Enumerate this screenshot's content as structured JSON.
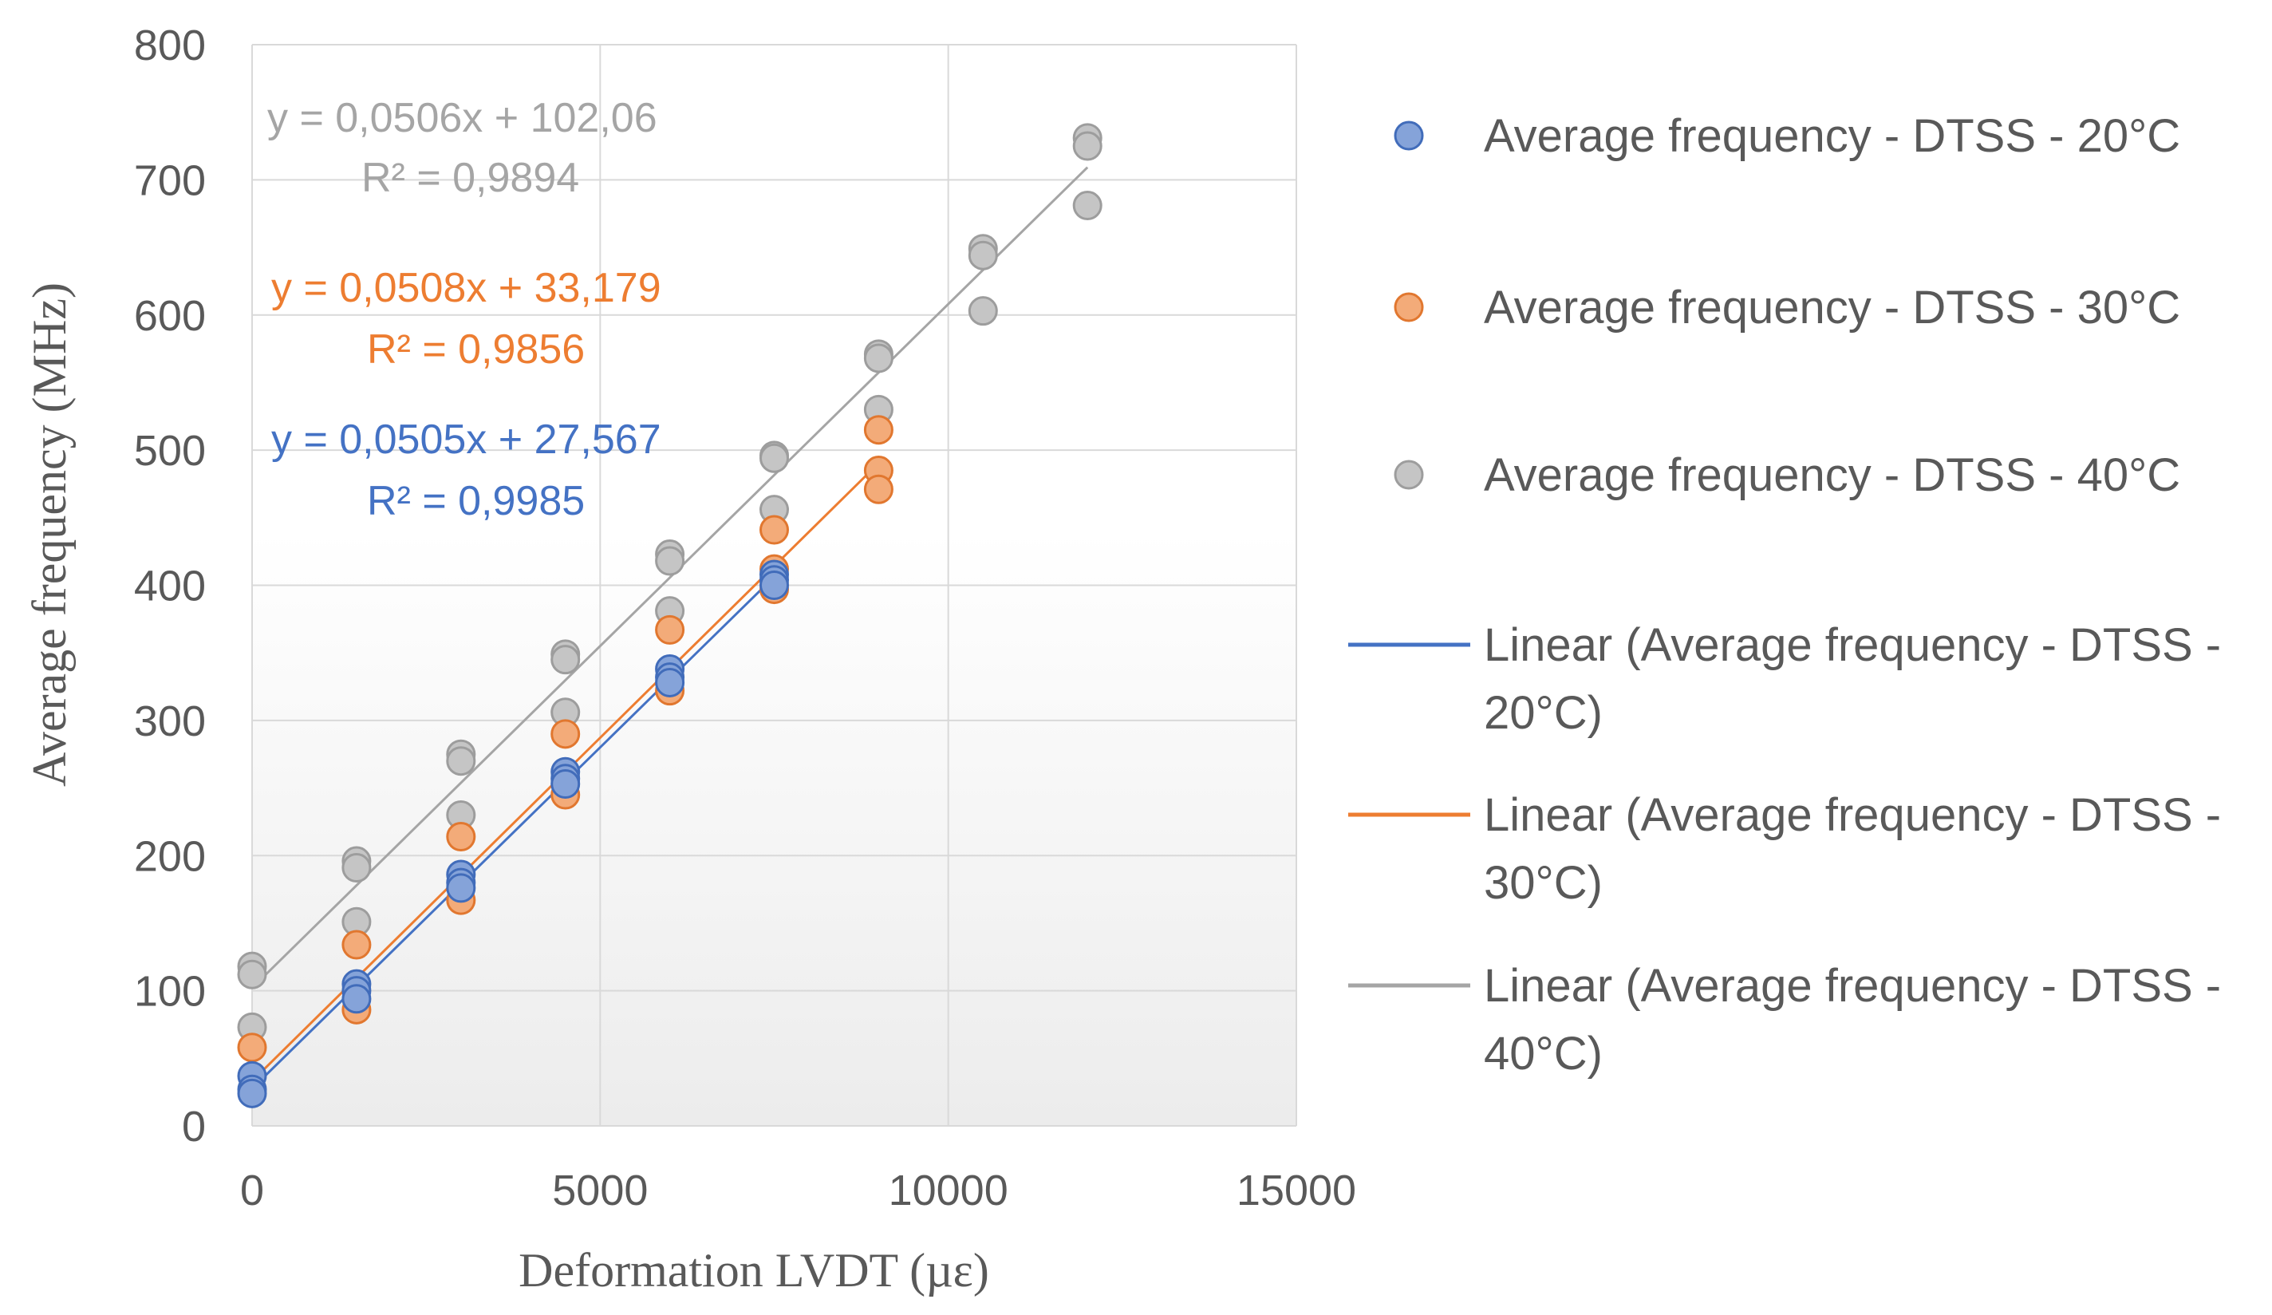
{
  "chart_data": {
    "type": "scatter",
    "xlabel": "Deformation LVDT (µε)",
    "ylabel": "Average frequency (MHz)",
    "xlim": [
      0,
      15000
    ],
    "ylim": [
      0,
      800
    ],
    "xticks": [
      0,
      5000,
      10000,
      15000
    ],
    "yticks": [
      0,
      100,
      200,
      300,
      400,
      500,
      600,
      700,
      800
    ],
    "grid": true,
    "legend_position": "right",
    "series": [
      {
        "name": "Average frequency - DTSS - 20°C",
        "color": "#4472C4",
        "points": [
          [
            0,
            37
          ],
          [
            0,
            27
          ],
          [
            0,
            24
          ],
          [
            1500,
            105
          ],
          [
            1500,
            100
          ],
          [
            1500,
            94
          ],
          [
            3000,
            186
          ],
          [
            3000,
            180
          ],
          [
            3000,
            176
          ],
          [
            4500,
            262
          ],
          [
            4500,
            257
          ],
          [
            4500,
            253
          ],
          [
            6000,
            338
          ],
          [
            6000,
            332
          ],
          [
            6000,
            328
          ],
          [
            7500,
            408
          ],
          [
            7500,
            404
          ],
          [
            7500,
            400
          ]
        ],
        "trendline": {
          "label": "Linear (Average frequency - DTSS - 20°C)",
          "slope": 0.0505,
          "intercept": 27.567,
          "x_range": [
            0,
            7500
          ],
          "equation": "y = 0,0505x + 27,567",
          "r2": "R² = 0,9985"
        }
      },
      {
        "name": "Average frequency - DTSS - 30°C",
        "color": "#ED7D31",
        "points": [
          [
            0,
            58
          ],
          [
            1500,
            134
          ],
          [
            1500,
            86
          ],
          [
            3000,
            214
          ],
          [
            3000,
            167
          ],
          [
            4500,
            290
          ],
          [
            4500,
            245
          ],
          [
            6000,
            367
          ],
          [
            6000,
            322
          ],
          [
            7500,
            441
          ],
          [
            7500,
            412
          ],
          [
            7500,
            397
          ],
          [
            9000,
            515
          ],
          [
            9000,
            485
          ],
          [
            9000,
            471
          ]
        ],
        "trendline": {
          "label": "Linear (Average frequency - DTSS - 30°C)",
          "slope": 0.0508,
          "intercept": 33.179,
          "x_range": [
            0,
            9000
          ],
          "equation": "y = 0,0508x + 33,179",
          "r2": "R² = 0,9856"
        }
      },
      {
        "name": "Average frequency - DTSS - 40°C",
        "color": "#A5A5A5",
        "points": [
          [
            0,
            118
          ],
          [
            0,
            112
          ],
          [
            0,
            73
          ],
          [
            1500,
            196
          ],
          [
            1500,
            191
          ],
          [
            1500,
            151
          ],
          [
            3000,
            275
          ],
          [
            3000,
            270
          ],
          [
            3000,
            230
          ],
          [
            4500,
            349
          ],
          [
            4500,
            345
          ],
          [
            4500,
            306
          ],
          [
            6000,
            423
          ],
          [
            6000,
            418
          ],
          [
            6000,
            381
          ],
          [
            7500,
            496
          ],
          [
            7500,
            494
          ],
          [
            7500,
            456
          ],
          [
            9000,
            571
          ],
          [
            9000,
            568
          ],
          [
            9000,
            530
          ],
          [
            10500,
            649
          ],
          [
            10500,
            644
          ],
          [
            10500,
            603
          ],
          [
            12000,
            731
          ],
          [
            12000,
            725
          ],
          [
            12000,
            681
          ]
        ],
        "trendline": {
          "label": "Linear (Average frequency - DTSS - 40°C)",
          "slope": 0.0506,
          "intercept": 102.06,
          "x_range": [
            0,
            12000
          ],
          "equation": "y = 0,0506x + 102,06",
          "r2": "R² = 0,9894"
        }
      }
    ],
    "legend": [
      {
        "kind": "marker",
        "series": 0,
        "lines": [
          "Average frequency - DTSS - 20°C"
        ]
      },
      {
        "kind": "marker",
        "series": 1,
        "lines": [
          "Average frequency - DTSS - 30°C"
        ]
      },
      {
        "kind": "marker",
        "series": 2,
        "lines": [
          "Average frequency - DTSS - 40°C"
        ]
      },
      {
        "kind": "line",
        "series": 0,
        "lines": [
          "Linear (Average frequency - DTSS -",
          "20°C)"
        ]
      },
      {
        "kind": "line",
        "series": 1,
        "lines": [
          "Linear (Average frequency - DTSS -",
          "30°C)"
        ]
      },
      {
        "kind": "line",
        "series": 2,
        "lines": [
          "Linear (Average frequency - DTSS -",
          "40°C)"
        ]
      }
    ]
  }
}
